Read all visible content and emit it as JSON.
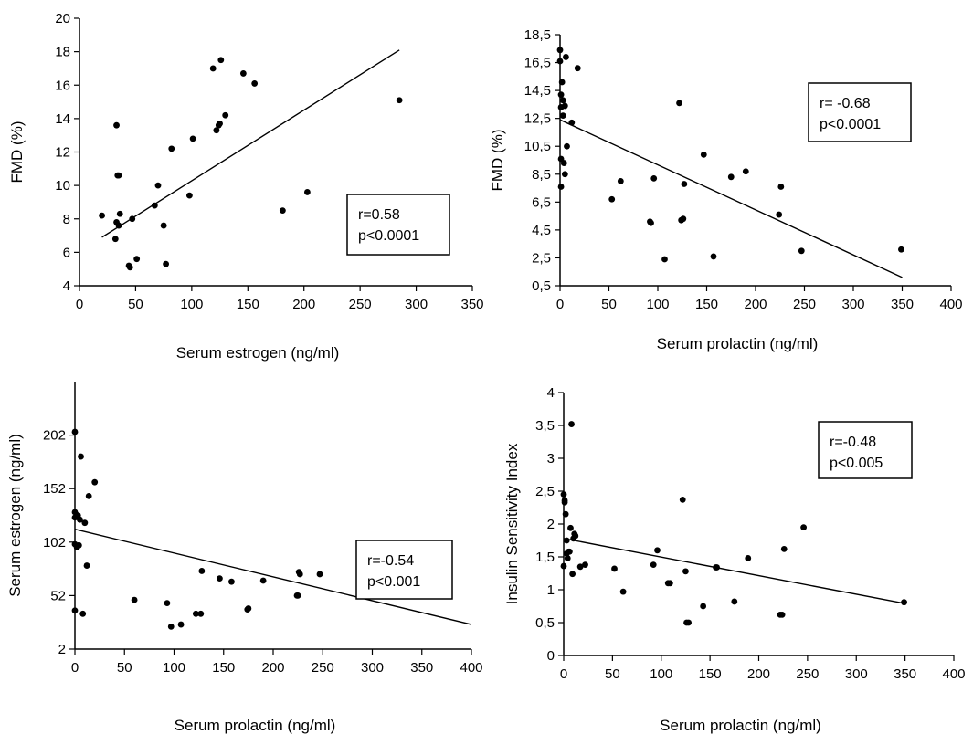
{
  "chart_data": [
    {
      "type": "scatter",
      "title": "",
      "xlabel": "Serum estrogen (ng/ml)",
      "ylabel": "FMD (%)",
      "xlim": [
        0,
        350
      ],
      "ylim": [
        4,
        20
      ],
      "x_ticks": [
        "0",
        "50",
        "100",
        "150",
        "200",
        "250",
        "300",
        "350"
      ],
      "y_ticks": [
        "4",
        "6",
        "8",
        "10",
        "12",
        "14",
        "16",
        "18",
        "20"
      ],
      "stats": {
        "r": "r=0.58",
        "p": "p<0.0001"
      },
      "stats_position": "bottom-right",
      "grid": false,
      "trendline": [
        [
          20,
          6.9
        ],
        [
          285,
          18.1
        ]
      ],
      "points": [
        [
          20,
          8.2
        ],
        [
          32,
          6.8
        ],
        [
          33,
          13.6
        ],
        [
          33,
          7.8
        ],
        [
          34,
          10.6
        ],
        [
          35,
          10.6
        ],
        [
          35,
          7.6
        ],
        [
          36,
          8.3
        ],
        [
          44,
          5.2
        ],
        [
          45,
          5.1
        ],
        [
          47,
          8.0
        ],
        [
          51,
          5.6
        ],
        [
          67,
          8.8
        ],
        [
          70,
          10.0
        ],
        [
          75,
          7.6
        ],
        [
          77,
          5.3
        ],
        [
          82,
          12.2
        ],
        [
          98,
          9.4
        ],
        [
          101,
          12.8
        ],
        [
          119,
          17.0
        ],
        [
          122,
          13.3
        ],
        [
          124,
          13.6
        ],
        [
          125,
          13.7
        ],
        [
          126,
          17.5
        ],
        [
          130,
          14.2
        ],
        [
          146,
          16.7
        ],
        [
          156,
          16.1
        ],
        [
          181,
          8.5
        ],
        [
          203,
          9.6
        ],
        [
          285,
          15.1
        ]
      ]
    },
    {
      "type": "scatter",
      "title": "",
      "xlabel": "Serum prolactin (ng/ml)",
      "ylabel": "FMD (%)",
      "xlim": [
        0,
        400
      ],
      "ylim": [
        0.5,
        18.5
      ],
      "x_ticks": [
        "0",
        "50",
        "100",
        "150",
        "200",
        "250",
        "300",
        "350",
        "400"
      ],
      "y_ticks": [
        "0,5",
        "2,5",
        "4,5",
        "6,5",
        "8,5",
        "10,5",
        "12,5",
        "14,5",
        "16,5",
        "18,5"
      ],
      "stats": {
        "r": "r= -0.68",
        "p": "p<0.0001"
      },
      "stats_position": "top-right",
      "grid": false,
      "trendline": [
        [
          0,
          12.4
        ],
        [
          350,
          1.1
        ]
      ],
      "points": [
        [
          0,
          17.4
        ],
        [
          0,
          16.6
        ],
        [
          1,
          14.2
        ],
        [
          1,
          13.3
        ],
        [
          1,
          9.6
        ],
        [
          1,
          7.6
        ],
        [
          2,
          15.1
        ],
        [
          3,
          13.8
        ],
        [
          3,
          12.7
        ],
        [
          4,
          9.3
        ],
        [
          5,
          13.4
        ],
        [
          5,
          8.5
        ],
        [
          6,
          16.9
        ],
        [
          7,
          10.5
        ],
        [
          12,
          12.2
        ],
        [
          18,
          16.1
        ],
        [
          53,
          6.7
        ],
        [
          62,
          8.0
        ],
        [
          92,
          5.1
        ],
        [
          93,
          5.0
        ],
        [
          96,
          8.2
        ],
        [
          107,
          2.4
        ],
        [
          122,
          13.6
        ],
        [
          124,
          5.2
        ],
        [
          126,
          5.3
        ],
        [
          127,
          7.8
        ],
        [
          147,
          9.9
        ],
        [
          157,
          2.6
        ],
        [
          175,
          8.3
        ],
        [
          190,
          8.7
        ],
        [
          224,
          5.6
        ],
        [
          226,
          7.6
        ],
        [
          247,
          3.0
        ],
        [
          349,
          3.1
        ]
      ]
    },
    {
      "type": "scatter",
      "title": "",
      "xlabel": "Serum prolactin (ng/ml)",
      "ylabel": "Serum estrogen (ng/ml)",
      "xlim": [
        0,
        400
      ],
      "ylim": [
        2,
        252
      ],
      "x_ticks": [
        "0",
        "50",
        "100",
        "150",
        "200",
        "250",
        "300",
        "350",
        "400"
      ],
      "y_ticks": [
        "2",
        "52",
        "102",
        "152",
        "202"
      ],
      "stats": {
        "r": "r=-0.54",
        "p": "p<0.001"
      },
      "stats_position": "right",
      "grid": false,
      "trendline": [
        [
          0,
          114
        ],
        [
          400,
          25
        ]
      ],
      "points": [
        [
          0,
          205
        ],
        [
          0,
          130
        ],
        [
          0,
          125
        ],
        [
          0,
          100
        ],
        [
          0,
          38
        ],
        [
          2,
          97
        ],
        [
          3,
          127
        ],
        [
          4,
          99
        ],
        [
          5,
          123
        ],
        [
          6,
          182
        ],
        [
          8,
          35
        ],
        [
          10,
          120
        ],
        [
          12,
          80
        ],
        [
          14,
          145
        ],
        [
          20,
          158
        ],
        [
          60,
          48
        ],
        [
          93,
          45
        ],
        [
          97,
          23
        ],
        [
          107,
          25
        ],
        [
          122,
          35
        ],
        [
          127,
          35
        ],
        [
          128,
          75
        ],
        [
          146,
          68
        ],
        [
          158,
          65
        ],
        [
          174,
          39
        ],
        [
          175,
          40
        ],
        [
          190,
          66
        ],
        [
          224,
          52
        ],
        [
          225,
          52
        ],
        [
          226,
          74
        ],
        [
          227,
          72
        ],
        [
          247,
          72
        ],
        [
          350,
          52
        ]
      ]
    },
    {
      "type": "scatter",
      "title": "",
      "xlabel": "Serum prolactin (ng/ml)",
      "ylabel": "Insulin Sensitivity Index",
      "xlim": [
        0,
        400
      ],
      "ylim": [
        0,
        4
      ],
      "x_ticks": [
        "0",
        "50",
        "100",
        "150",
        "200",
        "250",
        "300",
        "350",
        "400"
      ],
      "y_ticks": [
        "0",
        "0,5",
        "1",
        "1,5",
        "2",
        "2,5",
        "3",
        "3,5",
        "4"
      ],
      "stats": {
        "r": "r=-0.48",
        "p": "p<0.005"
      },
      "stats_position": "top-right",
      "grid": false,
      "trendline": [
        [
          0,
          1.78
        ],
        [
          350,
          0.79
        ]
      ],
      "points": [
        [
          0,
          2.45
        ],
        [
          0,
          1.36
        ],
        [
          1,
          2.36
        ],
        [
          1,
          2.33
        ],
        [
          2,
          2.15
        ],
        [
          3,
          1.75
        ],
        [
          3,
          1.55
        ],
        [
          4,
          1.48
        ],
        [
          5,
          1.58
        ],
        [
          6,
          1.58
        ],
        [
          7,
          1.94
        ],
        [
          8,
          3.52
        ],
        [
          9,
          1.24
        ],
        [
          10,
          1.78
        ],
        [
          11,
          1.85
        ],
        [
          12,
          1.82
        ],
        [
          17,
          1.35
        ],
        [
          22,
          1.38
        ],
        [
          52,
          1.32
        ],
        [
          61,
          0.97
        ],
        [
          92,
          1.38
        ],
        [
          96,
          1.6
        ],
        [
          107,
          1.1
        ],
        [
          109,
          1.1
        ],
        [
          122,
          2.37
        ],
        [
          125,
          1.28
        ],
        [
          126,
          0.5
        ],
        [
          128,
          0.5
        ],
        [
          143,
          0.75
        ],
        [
          156,
          1.34
        ],
        [
          157,
          1.34
        ],
        [
          175,
          0.82
        ],
        [
          189,
          1.48
        ],
        [
          222,
          0.62
        ],
        [
          224,
          0.62
        ],
        [
          226,
          1.62
        ],
        [
          246,
          1.95
        ],
        [
          349,
          0.81
        ]
      ]
    }
  ]
}
